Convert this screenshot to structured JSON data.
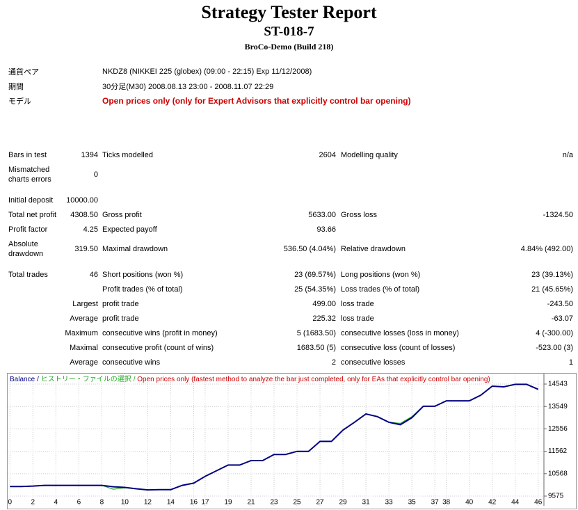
{
  "header": {
    "title": "Strategy Tester Report",
    "subtitle": "ST-018-7",
    "build": "BroCo-Demo (Build 218)"
  },
  "info": [
    [
      "通貨ペア",
      "NKDZ8 (NIKKEI 225 (globex) (09:00 - 22:15) Exp 11/12/2008)"
    ],
    [
      "期間",
      "30分足(M30) 2008.08.13 23:00 - 2008.11.07 22:29"
    ],
    [
      "モデル",
      "Open prices only (only for Expert Advisors that explicitly control bar opening)"
    ]
  ],
  "table": {
    "rows": [
      [
        "Bars in test",
        "1394",
        "Ticks modelled",
        "2604",
        "Modelling quality",
        "n/a"
      ],
      [
        "Mismatched charts errors",
        "0",
        null,
        null,
        null,
        null
      ],
      [
        "Initial deposit",
        "10000.00",
        null,
        null,
        null,
        null
      ],
      [
        "Total net profit",
        "4308.50",
        "Gross profit",
        "5633.00",
        "Gross loss",
        "-1324.50"
      ],
      [
        "Profit factor",
        "4.25",
        "Expected payoff",
        "93.66",
        null,
        null
      ],
      [
        "Absolute drawdown",
        "319.50",
        "Maximal drawdown",
        "536.50 (4.04%)",
        "Relative drawdown",
        "4.84% (492.00)"
      ],
      [
        "Total trades",
        "46",
        "Short positions (won %)",
        "23 (69.57%)",
        "Long positions (won %)",
        "23 (39.13%)"
      ],
      [
        null,
        null,
        "Profit trades (% of total)",
        "25 (54.35%)",
        "Loss trades (% of total)",
        "21 (45.65%)"
      ],
      [
        null,
        "Largest",
        "profit trade",
        "499.00",
        "loss trade",
        "-243.50"
      ],
      [
        null,
        "Average",
        "profit trade",
        "225.32",
        "loss trade",
        "-63.07"
      ],
      [
        null,
        "Maximum",
        "consecutive wins (profit in money)",
        "5 (1683.50)",
        "consecutive losses (loss in money)",
        "4 (-300.00)"
      ],
      [
        null,
        "Maximal",
        "consecutive profit (count of wins)",
        "1683.50 (5)",
        "consecutive loss (count of losses)",
        "-523.00 (3)"
      ],
      [
        null,
        "Average",
        "consecutive wins",
        "2",
        "consecutive losses",
        "1"
      ]
    ]
  },
  "chart_data": {
    "type": "line",
    "legend_separator": "/",
    "model_note": "Open prices only (fastest method to analyze the bar just completed, only for EAs that explicitly control bar opening)",
    "model_note_color": "#cc0000",
    "series": [
      {
        "name": "ヒストリー・ファイルの選択",
        "color": "#22aa22",
        "values": [
          10000,
          10000,
          10020,
          10050,
          10050,
          10050,
          10050,
          10050,
          10050,
          9880,
          9940,
          9900,
          9850,
          9860,
          9860,
          10050,
          10150,
          10450,
          10700,
          10950,
          10950,
          11150,
          11150,
          11420,
          11420,
          11560,
          11560,
          12000,
          12000,
          12500,
          12850,
          13220,
          13100,
          12850,
          12800,
          13100,
          13560,
          13560,
          13800,
          13800,
          13800,
          14050,
          14450,
          14420,
          14530,
          14530,
          14308.5
        ]
      },
      {
        "name": "Balance",
        "color": "#000080",
        "values": [
          10000,
          10000,
          10020,
          10050,
          10050,
          10050,
          10050,
          10050,
          10050,
          9990,
          9960,
          9900,
          9850,
          9860,
          9860,
          10050,
          10150,
          10450,
          10700,
          10950,
          10950,
          11150,
          11150,
          11420,
          11420,
          11560,
          11560,
          12000,
          12000,
          12500,
          12850,
          13220,
          13100,
          12850,
          12740,
          13050,
          13560,
          13560,
          13800,
          13800,
          13800,
          14050,
          14450,
          14420,
          14530,
          14530,
          14308.5
        ]
      }
    ],
    "xlim": [
      -0.2,
      46.5
    ],
    "xticks": [
      0,
      2,
      4,
      6,
      8,
      10,
      12,
      14,
      16,
      17,
      19,
      21,
      23,
      25,
      27,
      29,
      31,
      33,
      35,
      37,
      38,
      40,
      42,
      44,
      46
    ],
    "ylim": [
      9143,
      15006
    ],
    "yticks": [
      9575,
      10568,
      11562,
      12556,
      13549,
      14543
    ],
    "grid": true
  }
}
